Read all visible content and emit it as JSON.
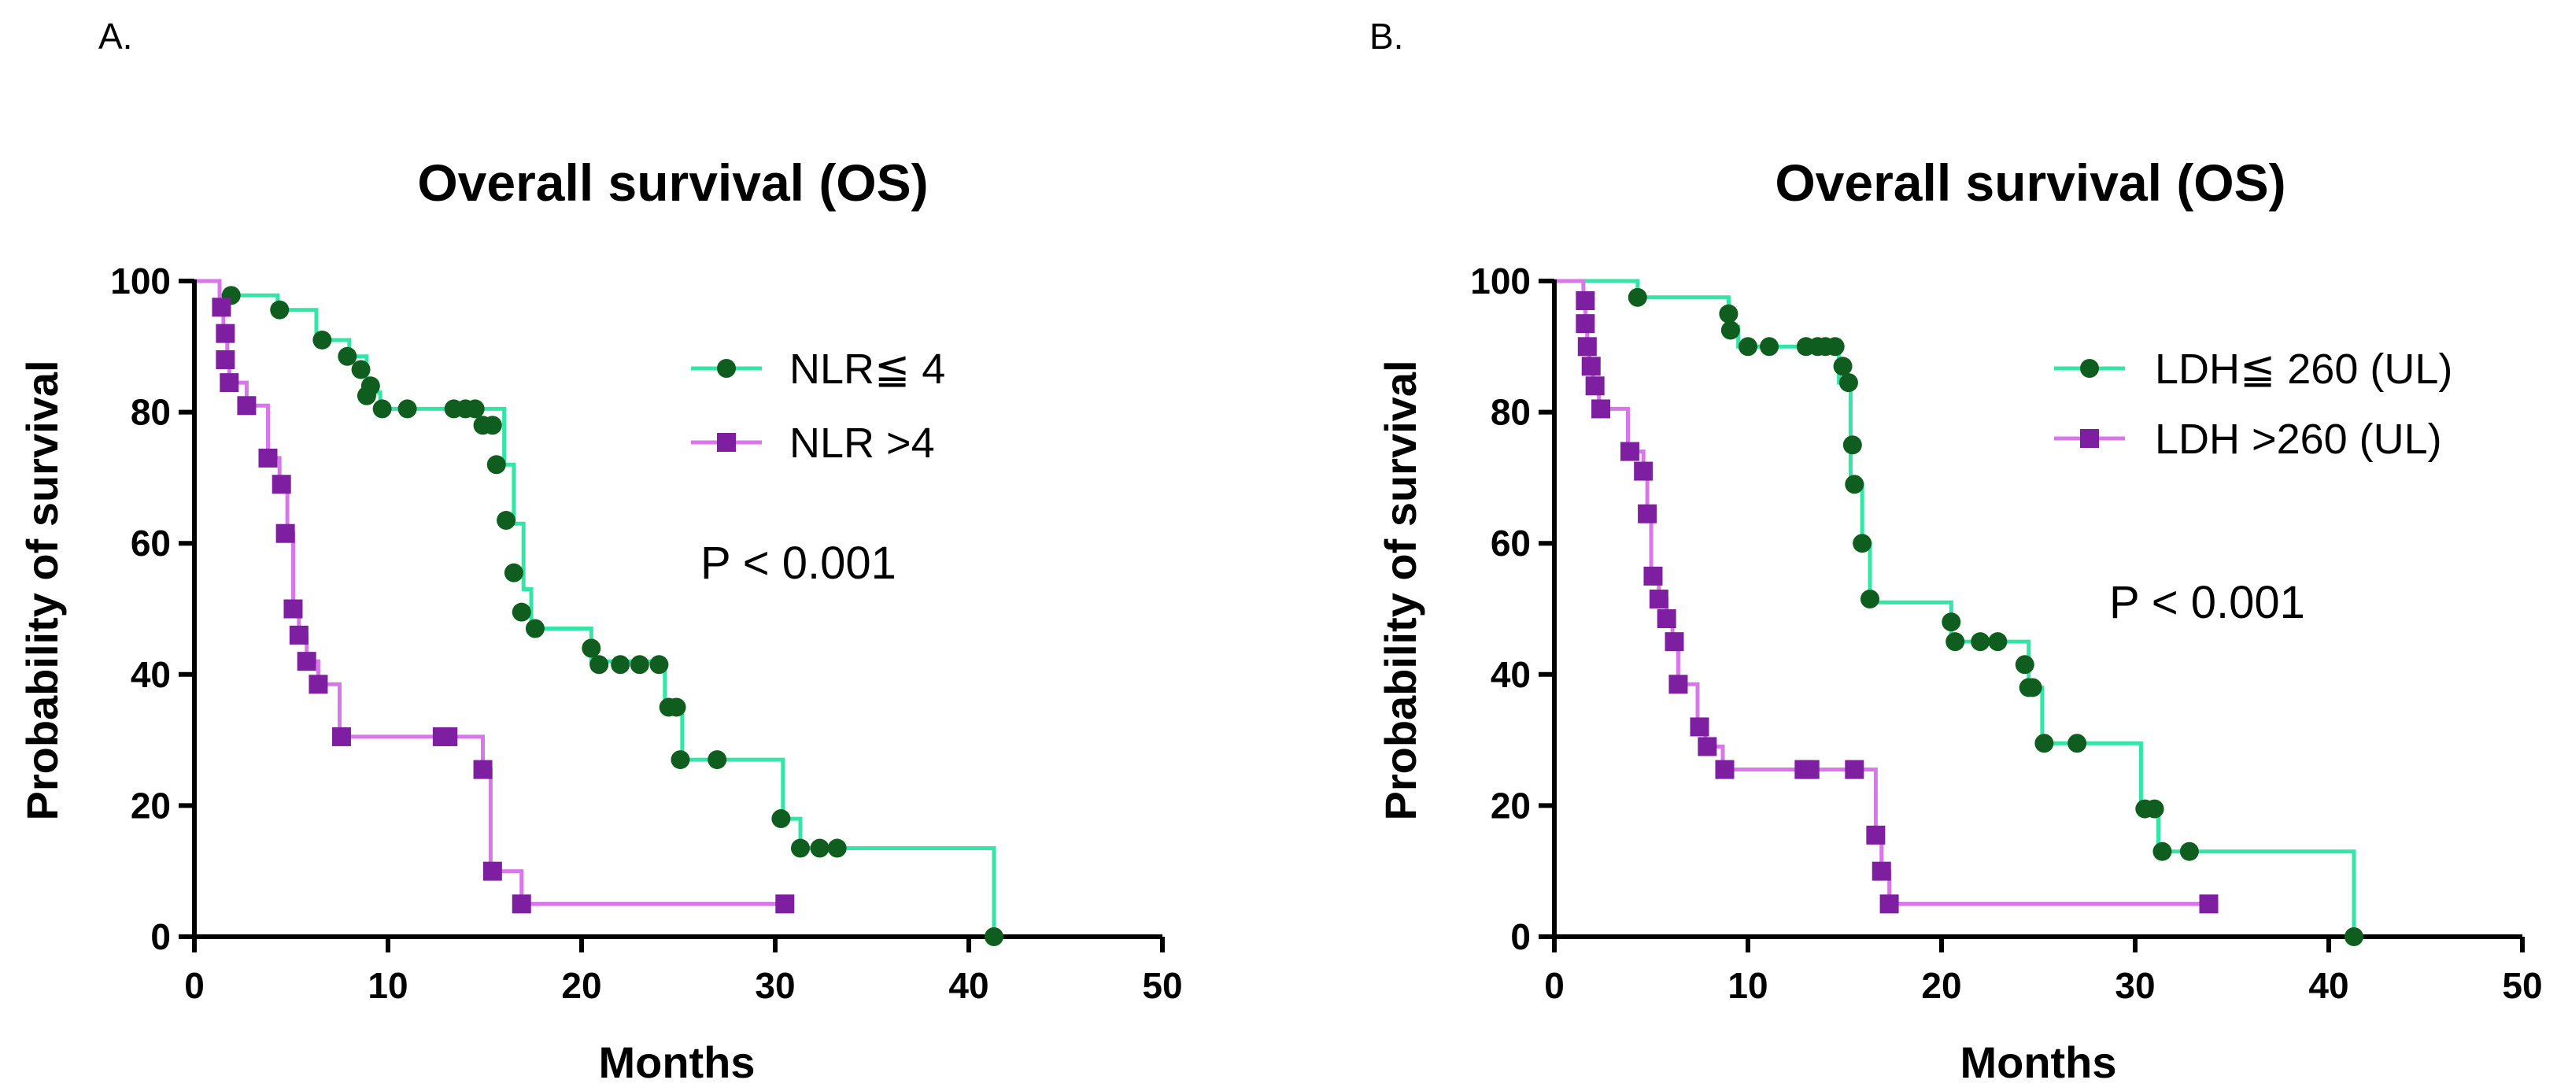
{
  "colors": {
    "group_low": "#33e6a6",
    "group_low_marker": "#0f5e1f",
    "group_high": "#d876ea",
    "group_high_marker": "#7d1fa0",
    "axis": "#000000"
  },
  "chart_data": [
    {
      "panel": "A.",
      "type": "line",
      "title": "Overall survival (OS)",
      "xlabel": "Months",
      "ylabel": "Probability of survival",
      "xlim": [
        0,
        50
      ],
      "ylim": [
        0,
        100
      ],
      "xticks": [
        "0",
        "10",
        "20",
        "30",
        "40",
        "50"
      ],
      "yticks": [
        "0",
        "20",
        "40",
        "60",
        "80",
        "100"
      ],
      "annotation": "P < 0.001",
      "legend_position": "top-right",
      "series": [
        {
          "name": "NLR≦ 4",
          "marker": "circle",
          "steps": [
            [
              0,
              100
            ],
            [
              1.3,
              100
            ],
            [
              1.3,
              97.8
            ],
            [
              4.3,
              97.8
            ],
            [
              4.3,
              95.6
            ],
            [
              6.3,
              95.6
            ],
            [
              6.3,
              91
            ],
            [
              8,
              91
            ],
            [
              8,
              88.5
            ],
            [
              8.9,
              88.5
            ],
            [
              8.9,
              83
            ],
            [
              9.6,
              83
            ],
            [
              9.6,
              80.5
            ],
            [
              16,
              80.5
            ],
            [
              16,
              72
            ],
            [
              16.5,
              72
            ],
            [
              16.5,
              63
            ],
            [
              17,
              63
            ],
            [
              17,
              53
            ],
            [
              17.4,
              53
            ],
            [
              17.4,
              47
            ],
            [
              20.5,
              47
            ],
            [
              20.5,
              42
            ],
            [
              24.3,
              42
            ],
            [
              24.3,
              34.5
            ],
            [
              25.2,
              34.5
            ],
            [
              25.2,
              27
            ],
            [
              30.4,
              27
            ],
            [
              30.4,
              18
            ],
            [
              31.3,
              18
            ],
            [
              31.3,
              13.5
            ],
            [
              41.3,
              13.5
            ],
            [
              41.3,
              0
            ]
          ],
          "censor": [
            [
              1.9,
              97.8
            ],
            [
              4.4,
              95.6
            ],
            [
              6.6,
              91
            ],
            [
              7.9,
              88.5
            ],
            [
              8.6,
              86.5
            ],
            [
              9.1,
              84
            ],
            [
              8.9,
              82.5
            ],
            [
              9.7,
              80.5
            ],
            [
              11,
              80.5
            ],
            [
              13.4,
              80.5
            ],
            [
              14,
              80.5
            ],
            [
              14.5,
              80.5
            ],
            [
              14.9,
              78
            ],
            [
              15.4,
              78
            ],
            [
              15.6,
              72
            ],
            [
              16.1,
              63.5
            ],
            [
              16.5,
              55.5
            ],
            [
              16.9,
              49.5
            ],
            [
              17.6,
              47
            ],
            [
              20.5,
              44
            ],
            [
              20.9,
              41.5
            ],
            [
              22,
              41.5
            ],
            [
              23,
              41.5
            ],
            [
              24,
              41.5
            ],
            [
              24.5,
              35
            ],
            [
              24.9,
              35
            ],
            [
              25.1,
              27
            ],
            [
              27,
              27
            ],
            [
              30.3,
              18
            ],
            [
              31.3,
              13.5
            ],
            [
              32.3,
              13.5
            ],
            [
              33.2,
              13.5
            ],
            [
              41.3,
              0
            ]
          ]
        },
        {
          "name": "NLR >4",
          "marker": "square",
          "steps": [
            [
              0,
              100
            ],
            [
              1.3,
              100
            ],
            [
              1.3,
              96
            ],
            [
              1.5,
              96
            ],
            [
              1.5,
              92
            ],
            [
              1.7,
              92
            ],
            [
              1.7,
              88
            ],
            [
              1.8,
              88
            ],
            [
              1.8,
              84.5
            ],
            [
              2.7,
              84.5
            ],
            [
              2.7,
              81
            ],
            [
              3.8,
              81
            ],
            [
              3.8,
              73
            ],
            [
              4.4,
              73
            ],
            [
              4.4,
              69
            ],
            [
              4.8,
              69
            ],
            [
              4.8,
              61.5
            ],
            [
              5.1,
              61.5
            ],
            [
              5.1,
              50
            ],
            [
              5.4,
              50
            ],
            [
              5.4,
              46
            ],
            [
              5.8,
              46
            ],
            [
              5.8,
              42
            ],
            [
              6.4,
              42
            ],
            [
              6.4,
              38.5
            ],
            [
              7.5,
              38.5
            ],
            [
              7.5,
              30.5
            ],
            [
              14.9,
              30.5
            ],
            [
              14.9,
              25.5
            ],
            [
              15.3,
              25.5
            ],
            [
              15.3,
              10
            ],
            [
              16.9,
              10
            ],
            [
              16.9,
              5
            ],
            [
              30.5,
              5
            ]
          ],
          "censor": [
            [
              1.4,
              96
            ],
            [
              1.6,
              92
            ],
            [
              1.6,
              88
            ],
            [
              1.8,
              84.5
            ],
            [
              2.7,
              81
            ],
            [
              3.8,
              73
            ],
            [
              4.5,
              69
            ],
            [
              4.7,
              61.5
            ],
            [
              5.1,
              50
            ],
            [
              5.4,
              46
            ],
            [
              5.8,
              42
            ],
            [
              6.4,
              38.5
            ],
            [
              7.6,
              30.5
            ],
            [
              12.8,
              30.5
            ],
            [
              13.1,
              30.5
            ],
            [
              14.9,
              25.5
            ],
            [
              15.4,
              10
            ],
            [
              16.9,
              5
            ],
            [
              30.5,
              5
            ]
          ]
        }
      ]
    },
    {
      "panel": "B.",
      "type": "line",
      "title": "Overall survival (OS)",
      "xlabel": "Months",
      "ylabel": "Probability of survival",
      "xlim": [
        0,
        50
      ],
      "ylim": [
        0,
        100
      ],
      "xticks": [
        "0",
        "10",
        "20",
        "30",
        "40",
        "50"
      ],
      "yticks": [
        "0",
        "20",
        "40",
        "60",
        "80",
        "100"
      ],
      "annotation": "P < 0.001",
      "legend_position": "top-right",
      "series": [
        {
          "name": "LDH≦ 260 (UL)",
          "marker": "circle",
          "steps": [
            [
              0,
              100
            ],
            [
              4.3,
              100
            ],
            [
              4.3,
              97.5
            ],
            [
              9,
              97.5
            ],
            [
              9,
              93
            ],
            [
              9.5,
              93
            ],
            [
              9.5,
              90
            ],
            [
              14.7,
              90
            ],
            [
              14.7,
              84.5
            ],
            [
              15.3,
              84.5
            ],
            [
              15.3,
              69
            ],
            [
              15.9,
              69
            ],
            [
              15.9,
              60
            ],
            [
              16.3,
              60
            ],
            [
              16.3,
              51
            ],
            [
              20.5,
              51
            ],
            [
              20.5,
              45
            ],
            [
              24.5,
              45
            ],
            [
              24.5,
              38
            ],
            [
              25.2,
              38
            ],
            [
              25.2,
              29.5
            ],
            [
              30.3,
              29.5
            ],
            [
              30.3,
              19.5
            ],
            [
              31.2,
              19.5
            ],
            [
              31.2,
              13
            ],
            [
              41.3,
              13
            ],
            [
              41.3,
              0
            ]
          ],
          "censor": [
            [
              4.3,
              97.5
            ],
            [
              9,
              95
            ],
            [
              9.1,
              92.5
            ],
            [
              10,
              90
            ],
            [
              11.1,
              90
            ],
            [
              13,
              90
            ],
            [
              13.6,
              90
            ],
            [
              14,
              90
            ],
            [
              14.5,
              90
            ],
            [
              14.9,
              87
            ],
            [
              15.2,
              84.5
            ],
            [
              15.4,
              75
            ],
            [
              15.5,
              69
            ],
            [
              15.9,
              60
            ],
            [
              16.3,
              51.5
            ],
            [
              20.5,
              48
            ],
            [
              20.7,
              45
            ],
            [
              22,
              45
            ],
            [
              22.9,
              45
            ],
            [
              24.3,
              41.5
            ],
            [
              24.5,
              38
            ],
            [
              24.7,
              38
            ],
            [
              25.3,
              29.5
            ],
            [
              27,
              29.5
            ],
            [
              30.5,
              19.5
            ],
            [
              31,
              19.5
            ],
            [
              31.4,
              13
            ],
            [
              32.8,
              13
            ],
            [
              41.3,
              0
            ]
          ]
        },
        {
          "name": "LDH >260 (UL)",
          "marker": "square",
          "steps": [
            [
              0,
              100
            ],
            [
              1.5,
              100
            ],
            [
              1.5,
              97
            ],
            [
              1.6,
              97
            ],
            [
              1.6,
              93.5
            ],
            [
              1.7,
              93.5
            ],
            [
              1.7,
              90
            ],
            [
              1.8,
              90
            ],
            [
              1.8,
              87
            ],
            [
              2,
              87
            ],
            [
              2,
              84
            ],
            [
              2.3,
              84
            ],
            [
              2.3,
              80.5
            ],
            [
              3.8,
              80.5
            ],
            [
              3.8,
              74
            ],
            [
              4.6,
              74
            ],
            [
              4.6,
              71
            ],
            [
              4.8,
              71
            ],
            [
              4.8,
              64.5
            ],
            [
              5,
              64.5
            ],
            [
              5,
              55
            ],
            [
              5.4,
              55
            ],
            [
              5.4,
              51.5
            ],
            [
              5.8,
              51.5
            ],
            [
              5.8,
              48.5
            ],
            [
              6.1,
              48.5
            ],
            [
              6.1,
              45
            ],
            [
              6.4,
              45
            ],
            [
              6.4,
              38.5
            ],
            [
              7.4,
              38.5
            ],
            [
              7.4,
              32
            ],
            [
              7.8,
              32
            ],
            [
              7.8,
              29
            ],
            [
              8.7,
              29
            ],
            [
              8.7,
              25.5
            ],
            [
              16.6,
              25.5
            ],
            [
              16.6,
              15.5
            ],
            [
              16.9,
              15.5
            ],
            [
              16.9,
              10
            ],
            [
              17.3,
              10
            ],
            [
              17.3,
              5
            ],
            [
              33.8,
              5
            ]
          ],
          "censor": [
            [
              1.6,
              97
            ],
            [
              1.6,
              93.5
            ],
            [
              1.7,
              90
            ],
            [
              1.9,
              87
            ],
            [
              2.1,
              84
            ],
            [
              2.4,
              80.5
            ],
            [
              3.9,
              74
            ],
            [
              4.6,
              71
            ],
            [
              4.8,
              64.5
            ],
            [
              5.1,
              55
            ],
            [
              5.4,
              51.5
            ],
            [
              5.8,
              48.5
            ],
            [
              6.2,
              45
            ],
            [
              6.4,
              38.5
            ],
            [
              7.5,
              32
            ],
            [
              7.9,
              29
            ],
            [
              8.8,
              25.5
            ],
            [
              12.9,
              25.5
            ],
            [
              13.2,
              25.5
            ],
            [
              15.5,
              25.5
            ],
            [
              16.6,
              15.5
            ],
            [
              16.9,
              10
            ],
            [
              17.3,
              5
            ],
            [
              33.8,
              5
            ]
          ]
        }
      ]
    }
  ]
}
